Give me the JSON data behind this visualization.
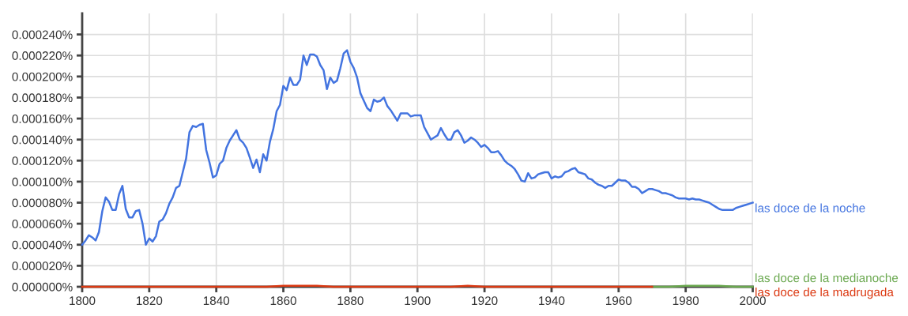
{
  "chart_data": {
    "type": "line",
    "xlim": [
      1800,
      2000
    ],
    "xticks": [
      1800,
      1820,
      1840,
      1860,
      1880,
      1900,
      1920,
      1940,
      1960,
      1980,
      2000
    ],
    "ylim": [
      0,
      0.00026
    ],
    "yticks": [
      {
        "value": 0,
        "label": "0.000000%"
      },
      {
        "value": 2e-05,
        "label": "0.000020%"
      },
      {
        "value": 4e-05,
        "label": "0.000040%"
      },
      {
        "value": 6e-05,
        "label": "0.000060%"
      },
      {
        "value": 8e-05,
        "label": "0.000080%"
      },
      {
        "value": 0.0001,
        "label": "0.000100%"
      },
      {
        "value": 0.00012,
        "label": "0.000120%"
      },
      {
        "value": 0.00014,
        "label": "0.000140%"
      },
      {
        "value": 0.00016,
        "label": "0.000160%"
      },
      {
        "value": 0.00018,
        "label": "0.000180%"
      },
      {
        "value": 0.0002,
        "label": "0.000200%"
      },
      {
        "value": 0.00022,
        "label": "0.000220%"
      },
      {
        "value": 0.00024,
        "label": "0.000240%"
      }
    ],
    "grid": true,
    "legend": false,
    "marker": "none",
    "line_style": "solid",
    "series": [
      {
        "name": "las doce de la noche",
        "color": "#4374e0",
        "x": [
          1800,
          1801,
          1802,
          1803,
          1804,
          1805,
          1806,
          1807,
          1808,
          1809,
          1810,
          1811,
          1812,
          1813,
          1814,
          1815,
          1816,
          1817,
          1818,
          1819,
          1820,
          1821,
          1822,
          1823,
          1824,
          1825,
          1826,
          1827,
          1828,
          1829,
          1830,
          1831,
          1832,
          1833,
          1834,
          1835,
          1836,
          1837,
          1838,
          1839,
          1840,
          1841,
          1842,
          1843,
          1844,
          1845,
          1846,
          1847,
          1848,
          1849,
          1850,
          1851,
          1852,
          1853,
          1854,
          1855,
          1856,
          1857,
          1858,
          1859,
          1860,
          1861,
          1862,
          1863,
          1864,
          1865,
          1866,
          1867,
          1868,
          1869,
          1870,
          1871,
          1872,
          1873,
          1874,
          1875,
          1876,
          1877,
          1878,
          1879,
          1880,
          1881,
          1882,
          1883,
          1884,
          1885,
          1886,
          1887,
          1888,
          1889,
          1890,
          1891,
          1892,
          1893,
          1894,
          1895,
          1896,
          1897,
          1898,
          1899,
          1900,
          1901,
          1902,
          1903,
          1904,
          1905,
          1906,
          1907,
          1908,
          1909,
          1910,
          1911,
          1912,
          1913,
          1914,
          1915,
          1916,
          1917,
          1918,
          1919,
          1920,
          1921,
          1922,
          1923,
          1924,
          1925,
          1926,
          1927,
          1928,
          1929,
          1930,
          1931,
          1932,
          1933,
          1934,
          1935,
          1936,
          1937,
          1938,
          1939,
          1940,
          1941,
          1942,
          1943,
          1944,
          1945,
          1946,
          1947,
          1948,
          1949,
          1950,
          1951,
          1952,
          1953,
          1954,
          1955,
          1956,
          1957,
          1958,
          1959,
          1960,
          1961,
          1962,
          1963,
          1964,
          1965,
          1966,
          1967,
          1968,
          1969,
          1970,
          1971,
          1972,
          1973,
          1974,
          1975,
          1976,
          1977,
          1978,
          1979,
          1980,
          1981,
          1982,
          1983,
          1984,
          1985,
          1986,
          1987,
          1988,
          1989,
          1990,
          1991,
          1992,
          1993,
          1994,
          1995,
          1996,
          1997,
          1998,
          1999,
          2000
        ],
        "values": [
          4e-05,
          4.4e-05,
          4.9e-05,
          4.7e-05,
          4.4e-05,
          5.2e-05,
          7.2e-05,
          8.5e-05,
          8.1e-05,
          7.3e-05,
          7.3e-05,
          8.8e-05,
          9.6e-05,
          7.4e-05,
          6.6e-05,
          6.6e-05,
          7.2e-05,
          7.3e-05,
          6e-05,
          4e-05,
          4.6e-05,
          4.3e-05,
          4.8e-05,
          6.2e-05,
          6.4e-05,
          7e-05,
          7.9e-05,
          8.5e-05,
          9.4e-05,
          9.6e-05,
          0.000109,
          0.000122,
          0.000147,
          0.000153,
          0.000152,
          0.000154,
          0.000155,
          0.00013,
          0.000118,
          0.000104,
          0.000106,
          0.000117,
          0.00012,
          0.000132,
          0.000139,
          0.000144,
          0.000149,
          0.00014,
          0.000137,
          0.000132,
          0.000123,
          0.000113,
          0.000121,
          0.000109,
          0.000126,
          0.00012,
          0.000138,
          0.00015,
          0.000167,
          0.000173,
          0.000191,
          0.000187,
          0.000199,
          0.000192,
          0.000192,
          0.000197,
          0.00022,
          0.000211,
          0.000221,
          0.000221,
          0.000219,
          0.000211,
          0.000206,
          0.000188,
          0.000199,
          0.000194,
          0.000196,
          0.000208,
          0.000222,
          0.000225,
          0.000214,
          0.000208,
          0.000199,
          0.000184,
          0.000177,
          0.00017,
          0.000167,
          0.000178,
          0.000176,
          0.000177,
          0.00018,
          0.000172,
          0.000168,
          0.000163,
          0.000158,
          0.000165,
          0.000165,
          0.000165,
          0.000162,
          0.000163,
          0.000163,
          0.000163,
          0.000152,
          0.000146,
          0.00014,
          0.000142,
          0.000144,
          0.000151,
          0.000145,
          0.00014,
          0.00014,
          0.000147,
          0.000149,
          0.000144,
          0.000137,
          0.000139,
          0.000142,
          0.00014,
          0.000137,
          0.000133,
          0.000135,
          0.000132,
          0.000128,
          0.000128,
          0.000129,
          0.000125,
          0.00012,
          0.000117,
          0.000115,
          0.000112,
          0.000107,
          0.000101,
          0.0001,
          0.000108,
          0.000103,
          0.000104,
          0.000107,
          0.000108,
          0.000109,
          0.000109,
          0.000103,
          0.000105,
          0.000104,
          0.000105,
          0.000109,
          0.00011,
          0.000112,
          0.000113,
          0.000109,
          0.000108,
          0.000107,
          0.000103,
          0.000102,
          9.9e-05,
          9.7e-05,
          9.6e-05,
          9.4e-05,
          9.6e-05,
          9.6e-05,
          9.9e-05,
          0.000102,
          0.000101,
          0.000101,
          9.9e-05,
          9.5e-05,
          9.5e-05,
          9.3e-05,
          8.9e-05,
          9.1e-05,
          9.3e-05,
          9.3e-05,
          9.2e-05,
          9.1e-05,
          8.9e-05,
          8.9e-05,
          8.8e-05,
          8.7e-05,
          8.5e-05,
          8.4e-05,
          8.4e-05,
          8.4e-05,
          8.3e-05,
          8.4e-05,
          8.3e-05,
          8.3e-05,
          8.2e-05,
          8.1e-05,
          8e-05,
          7.8e-05,
          7.6e-05,
          7.4e-05,
          7.3e-05,
          7.3e-05,
          7.3e-05,
          7.3e-05,
          7.5e-05,
          7.6e-05,
          7.7e-05,
          7.8e-05,
          7.9e-05,
          8e-05
        ]
      },
      {
        "name": "las doce de la medianoche",
        "color": "#6aa84f",
        "x": [
          1970,
          1975,
          1980,
          1985,
          1990,
          1995,
          2000
        ],
        "values": [
          0,
          0,
          1e-06,
          1e-06,
          1e-06,
          0,
          0
        ]
      },
      {
        "name": "las doce de la madrugada",
        "color": "#dc3912",
        "x": [
          1800,
          1855,
          1860,
          1865,
          1870,
          1875,
          1910,
          1915,
          1920,
          1970
        ],
        "values": [
          0,
          0,
          1e-06,
          1e-06,
          1e-06,
          0,
          0,
          1e-06,
          0,
          0
        ]
      }
    ]
  }
}
